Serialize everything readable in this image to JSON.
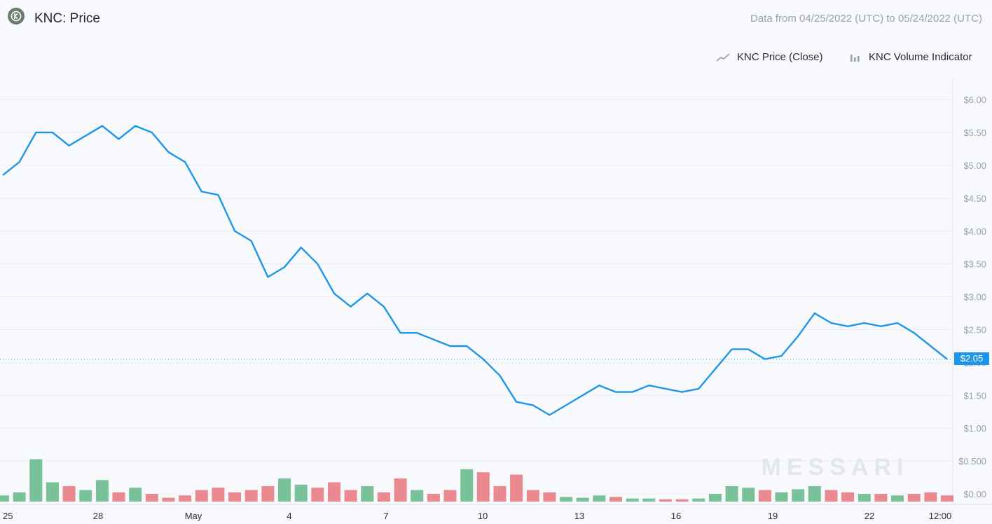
{
  "header": {
    "title": "KNC: Price",
    "date_range": "Data from 04/25/2022 (UTC) to 05/24/2022 (UTC)"
  },
  "legend": {
    "price_label": "KNC Price (Close)",
    "volume_label": "KNC Volume Indicator"
  },
  "watermark": "MESSARI",
  "current_price_label": "$2.05",
  "colors": {
    "price_line": "#1e96e8",
    "volume_up": "#63b887",
    "volume_down": "#e8757b",
    "grid": "#eceef3",
    "axis_text": "#9aa0ad"
  },
  "chart_data": {
    "type": "line",
    "x_ticks": [
      "25",
      "28",
      "May",
      "4",
      "7",
      "10",
      "13",
      "16",
      "19",
      "22",
      "12:00"
    ],
    "y_ticks": [
      "$6.00",
      "$5.50",
      "$5.00",
      "$4.50",
      "$4.00",
      "$3.50",
      "$3.00",
      "$2.50",
      "$2.00",
      "$1.50",
      "$1.00",
      "$0.500",
      "$0.00"
    ],
    "ylim": [
      0,
      6
    ],
    "series": [
      {
        "name": "KNC Price (Close)",
        "x": [
          "2022-04-25",
          "2022-04-26",
          "2022-04-26 12:00",
          "2022-04-27",
          "2022-04-27 12:00",
          "2022-04-28",
          "2022-04-28 12:00",
          "2022-04-29",
          "2022-04-29 12:00",
          "2022-04-30",
          "2022-04-30 12:00",
          "2022-05-01",
          "2022-05-01 12:00",
          "2022-05-02",
          "2022-05-02 12:00",
          "2022-05-03",
          "2022-05-03 12:00",
          "2022-05-04",
          "2022-05-04 12:00",
          "2022-05-05",
          "2022-05-05 12:00",
          "2022-05-06",
          "2022-05-06 12:00",
          "2022-05-07",
          "2022-05-07 12:00",
          "2022-05-08",
          "2022-05-08 12:00",
          "2022-05-09",
          "2022-05-09 12:00",
          "2022-05-10",
          "2022-05-10 12:00",
          "2022-05-11",
          "2022-05-11 12:00",
          "2022-05-12",
          "2022-05-12 12:00",
          "2022-05-13",
          "2022-05-13 12:00",
          "2022-05-14",
          "2022-05-14 12:00",
          "2022-05-15",
          "2022-05-15 12:00",
          "2022-05-16",
          "2022-05-16 12:00",
          "2022-05-17",
          "2022-05-17 12:00",
          "2022-05-18",
          "2022-05-18 12:00",
          "2022-05-19",
          "2022-05-19 12:00",
          "2022-05-20",
          "2022-05-20 12:00",
          "2022-05-21",
          "2022-05-21 12:00",
          "2022-05-22",
          "2022-05-22 12:00",
          "2022-05-23",
          "2022-05-23 12:00",
          "2022-05-24"
        ],
        "values": [
          4.85,
          5.05,
          5.5,
          5.5,
          5.3,
          5.45,
          5.6,
          5.4,
          5.6,
          5.5,
          5.2,
          5.05,
          4.6,
          4.55,
          4.0,
          3.85,
          3.3,
          3.45,
          3.75,
          3.5,
          3.05,
          2.85,
          3.05,
          2.85,
          2.45,
          2.45,
          2.35,
          2.25,
          2.25,
          2.05,
          1.8,
          1.4,
          1.35,
          1.2,
          1.35,
          1.5,
          1.65,
          1.55,
          1.55,
          1.65,
          1.6,
          1.55,
          1.6,
          1.9,
          2.2,
          2.2,
          2.05,
          2.1,
          2.4,
          2.75,
          2.6,
          2.55,
          2.6,
          2.55,
          2.6,
          2.45,
          2.25,
          2.05
        ]
      },
      {
        "name": "KNC Volume Indicator",
        "values_millions": [
          0.08,
          0.12,
          0.55,
          0.25,
          0.2,
          0.15,
          0.28,
          0.12,
          0.18,
          0.1,
          0.05,
          0.08,
          0.15,
          0.18,
          0.12,
          0.15,
          0.2,
          0.3,
          0.22,
          0.18,
          0.25,
          0.15,
          0.2,
          0.12,
          0.3,
          0.15,
          0.1,
          0.15,
          0.42,
          0.38,
          0.2,
          0.35,
          0.15,
          0.12,
          0.06,
          0.05,
          0.08,
          0.06,
          0.04,
          0.04,
          0.03,
          0.03,
          0.04,
          0.1,
          0.2,
          0.18,
          0.15,
          0.12,
          0.16,
          0.2,
          0.15,
          0.12,
          0.1,
          0.1,
          0.08,
          0.1,
          0.12,
          0.08
        ]
      }
    ]
  }
}
